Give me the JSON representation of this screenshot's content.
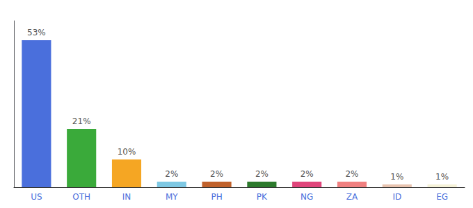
{
  "chart_data": {
    "type": "bar",
    "categories": [
      "US",
      "OTH",
      "IN",
      "MY",
      "PH",
      "PK",
      "NG",
      "ZA",
      "ID",
      "EG"
    ],
    "values": [
      53,
      21,
      10,
      2,
      2,
      2,
      2,
      2,
      1,
      1
    ],
    "value_labels": [
      "53%",
      "21%",
      "10%",
      "2%",
      "2%",
      "2%",
      "2%",
      "2%",
      "1%",
      "1%"
    ],
    "data_labels": true,
    "colors": [
      "#4a6fdc",
      "#3aaa3a",
      "#f5a623",
      "#7ec8e3",
      "#c0612b",
      "#2d7a2d",
      "#e0457b",
      "#f08080",
      "#e8c4b0",
      "#f5f2d8"
    ],
    "ylim": [
      0,
      60
    ],
    "tick_labels": "x",
    "grid": false
  }
}
